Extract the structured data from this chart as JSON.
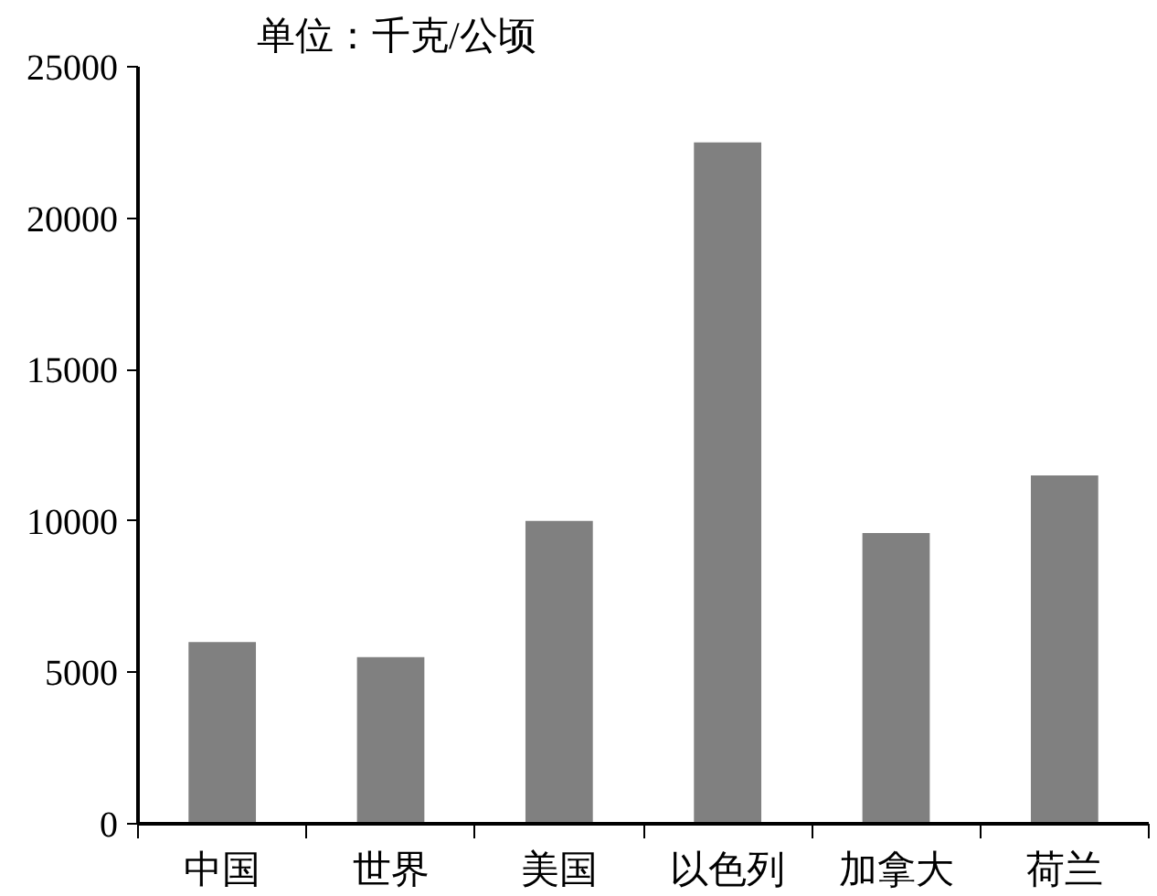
{
  "chart_data": {
    "type": "bar",
    "title": "单位：千克/公顷",
    "categories": [
      "中国",
      "世界",
      "美国",
      "以色列",
      "加拿大",
      "荷兰"
    ],
    "values": [
      6000,
      5500,
      10000,
      22500,
      9600,
      11500
    ],
    "color": "#808080",
    "ylim": [
      0,
      25000
    ],
    "yticks": [
      0,
      5000,
      10000,
      15000,
      20000,
      25000
    ],
    "grid": false
  }
}
